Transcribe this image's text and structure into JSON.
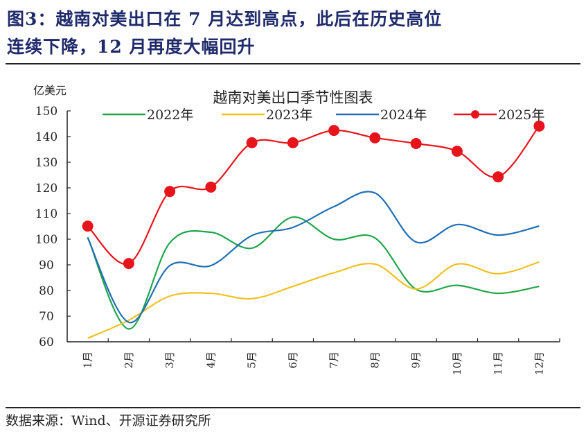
{
  "figure": {
    "title_line1": "图3：越南对美出口在 7 月达到高点，此后在历史高位",
    "title_line2": "连续下降，12 月再度大幅回升",
    "source": "数据来源：Wind、开源证券研究所"
  },
  "chart_data": {
    "type": "line",
    "title": "越南对美出口季节性图表",
    "ylabel": "亿美元",
    "xlabel": "",
    "categories": [
      "1月",
      "2月",
      "3月",
      "4月",
      "5月",
      "6月",
      "7月",
      "8月",
      "9月",
      "10月",
      "11月",
      "12月"
    ],
    "ylim": [
      60,
      150
    ],
    "yticks": [
      60,
      70,
      80,
      90,
      100,
      110,
      120,
      130,
      140,
      150
    ],
    "grid": false,
    "legend": "top",
    "series": [
      {
        "name": "2022年",
        "color": "#1fa64a",
        "markers": false,
        "values": [
          100.8,
          65,
          98.6,
          102.7,
          96.5,
          108.6,
          100,
          100.5,
          80.5,
          82,
          78.9,
          81.6
        ]
      },
      {
        "name": "2023年",
        "color": "#f2c01e",
        "markers": false,
        "values": [
          61.4,
          68.4,
          77.8,
          78.9,
          76.8,
          81.6,
          86.9,
          90.3,
          80.6,
          90.3,
          86.5,
          91.1
        ]
      },
      {
        "name": "2024年",
        "color": "#1f6fb5",
        "markers": false,
        "values": [
          100.5,
          67.6,
          89.7,
          89.7,
          101.4,
          104.6,
          112.7,
          118,
          98.9,
          105.7,
          101.6,
          105.1
        ]
      },
      {
        "name": "2025年",
        "color": "#e8141c",
        "markers": true,
        "values": [
          105.1,
          90.5,
          118.6,
          120.3,
          137.6,
          137.6,
          142.4,
          139.5,
          137.3,
          134.3,
          124.3,
          144.1
        ]
      }
    ]
  }
}
